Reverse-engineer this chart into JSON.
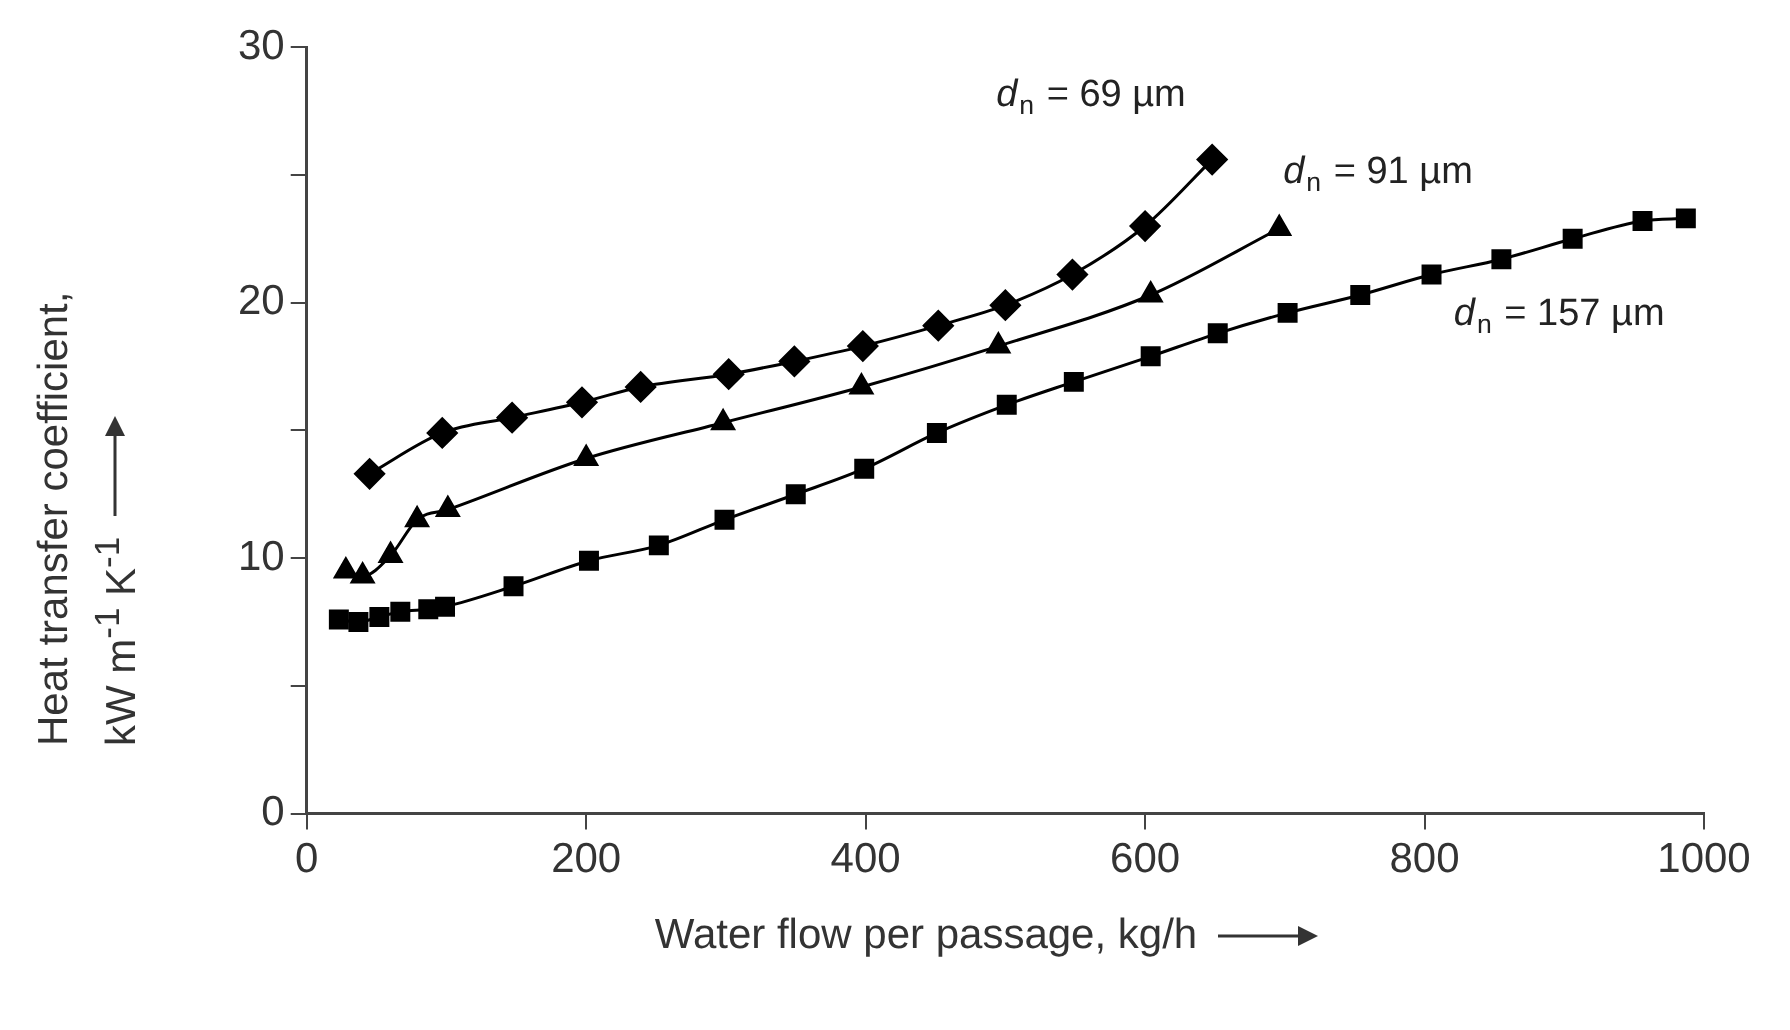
{
  "chart_data": {
    "type": "line",
    "xlabel": "Water flow per passage, kg/h",
    "ylabel": "Heat transfer coefficient,\nkW m$^{-1}$ K$^{-1}$",
    "xlim": [
      0,
      1000
    ],
    "xticks": [
      0,
      200,
      400,
      600,
      800,
      1000
    ],
    "ylim": [
      0,
      30
    ],
    "yticks": [
      0,
      {
        "value": 5,
        "label": null
      },
      10,
      {
        "value": 15,
        "label": null
      },
      20,
      {
        "value": 25,
        "label": null
      },
      30
    ],
    "grid": false,
    "legend": false,
    "series": [
      {
        "name": "d$_{n}$ = 69 µm",
        "color": "#000000",
        "marker": "diamond",
        "x": [
          45,
          97,
          147,
          197,
          239,
          302,
          349,
          398,
          452,
          500,
          548,
          600,
          648
        ],
        "values": [
          13.3,
          14.9,
          15.5,
          16.1,
          16.7,
          17.2,
          17.7,
          18.3,
          19.1,
          19.9,
          21.1,
          23.0,
          25.6
        ]
      },
      {
        "name": "d$_{n}$ = 91 µm",
        "color": "#000000",
        "marker": "triangle",
        "x": [
          28,
          40,
          60,
          79,
          101,
          200,
          298,
          397,
          495,
          604,
          696
        ],
        "values": [
          9.5,
          9.3,
          10.1,
          11.5,
          11.9,
          13.9,
          15.3,
          16.7,
          18.3,
          20.3,
          22.9
        ]
      },
      {
        "name": "d$_{n}$ = 157 µm",
        "color": "#000000",
        "marker": "square",
        "x": [
          23,
          37,
          52,
          67,
          87,
          99,
          148,
          202,
          252,
          299,
          350,
          399,
          451,
          501,
          549,
          604,
          652,
          702,
          754,
          805,
          855,
          906,
          956,
          987
        ],
        "values": [
          7.6,
          7.5,
          7.7,
          7.9,
          8.0,
          8.1,
          8.9,
          9.9,
          10.5,
          11.5,
          12.5,
          13.5,
          14.9,
          16.0,
          16.9,
          17.9,
          18.8,
          19.6,
          20.3,
          21.1,
          21.7,
          22.5,
          23.2,
          23.3
        ]
      }
    ]
  }
}
